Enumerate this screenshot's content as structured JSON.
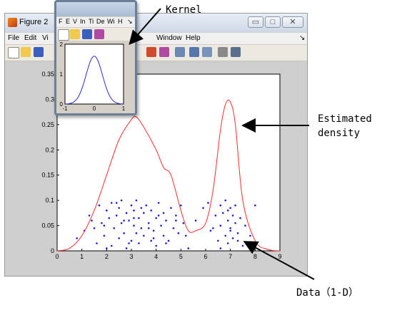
{
  "window": {
    "title": "Figure 2",
    "min_icon": "minimize-icon",
    "max_icon": "maximize-icon",
    "close_icon": "close-icon",
    "min_glyph": "▭",
    "max_glyph": "□",
    "close_glyph": "✕",
    "menu": [
      "File",
      "Edit",
      "Vi",
      "Window",
      "Help"
    ]
  },
  "popup": {
    "menu": [
      "F",
      "E",
      "V",
      "In",
      "Ti",
      "De",
      "Wi",
      "H"
    ],
    "chart_data": {
      "type": "line",
      "x_ticks": [
        "-1",
        "0",
        "1"
      ],
      "y_ticks": [
        "2",
        "1",
        "0"
      ],
      "xlim": [
        -1,
        1
      ],
      "ylim": [
        0,
        2
      ],
      "series": [
        {
          "color": "#2b2bd9",
          "peak_x": 0,
          "peak_y": 1.6
        }
      ]
    }
  },
  "annotations": {
    "kernel": "Kernel",
    "estimated_line1": "Estimated",
    "estimated_line2": "density",
    "data": "Data（1-D）"
  },
  "chart_data": {
    "type": "line",
    "xlim": [
      0,
      9
    ],
    "ylim": [
      0,
      0.35
    ],
    "x_ticks": [
      "0",
      "1",
      "2",
      "3",
      "4",
      "5",
      "6",
      "7",
      "8",
      "9"
    ],
    "y_ticks": [
      "0",
      "0.05",
      "0.1",
      "0.15",
      "0.2",
      "0.25",
      "0.3",
      "0.35"
    ],
    "density_color": "#ff2b2b",
    "points_color": "#1a1ae6",
    "density": {
      "x": [
        0,
        0.5,
        1.0,
        1.5,
        2.0,
        2.5,
        3.0,
        3.2,
        3.5,
        4.0,
        4.3,
        4.6,
        5.0,
        5.3,
        5.6,
        6.0,
        6.3,
        6.6,
        6.8,
        7.0,
        7.2,
        7.5,
        8.0,
        8.5,
        9.0
      ],
      "y": [
        0.0,
        0.005,
        0.03,
        0.08,
        0.15,
        0.22,
        0.26,
        0.265,
        0.245,
        0.2,
        0.165,
        0.15,
        0.08,
        0.04,
        0.04,
        0.055,
        0.12,
        0.24,
        0.29,
        0.295,
        0.25,
        0.1,
        0.02,
        0.003,
        0.0
      ]
    },
    "points": {
      "x": [
        0.8,
        1.1,
        1.3,
        1.5,
        1.6,
        1.7,
        1.8,
        1.9,
        2.0,
        2.1,
        2.2,
        2.2,
        2.3,
        2.4,
        2.5,
        2.5,
        2.6,
        2.7,
        2.8,
        2.8,
        2.9,
        3.0,
        3.0,
        3.1,
        3.1,
        3.2,
        3.2,
        3.3,
        3.3,
        3.4,
        3.5,
        3.5,
        3.6,
        3.7,
        3.8,
        3.8,
        3.9,
        4.0,
        4.0,
        4.1,
        4.2,
        4.3,
        4.3,
        4.4,
        4.5,
        4.6,
        4.7,
        4.8,
        4.9,
        5.0,
        5.1,
        5.3,
        5.6,
        5.9,
        6.1,
        6.2,
        6.4,
        6.5,
        6.6,
        6.6,
        6.7,
        6.8,
        6.8,
        6.9,
        6.9,
        7.0,
        7.0,
        7.1,
        7.1,
        7.2,
        7.2,
        7.3,
        7.4,
        7.5,
        7.6,
        7.8,
        8.0,
        1.4,
        2.0,
        2.6,
        3.4,
        4.1,
        4.8,
        6.6,
        7.3,
        2.9,
        3.7,
        6.9,
        1.9,
        3.1,
        4.4,
        7.0,
        2.4,
        5.2,
        6.3,
        3.9,
        2.7
      ],
      "y": [
        0.025,
        0.04,
        0.07,
        0.045,
        0.015,
        0.09,
        0.055,
        0.03,
        0.08,
        0.065,
        0.01,
        0.095,
        0.045,
        0.07,
        0.025,
        0.085,
        0.055,
        0.035,
        0.075,
        0.005,
        0.06,
        0.09,
        0.02,
        0.05,
        0.08,
        0.035,
        0.1,
        0.065,
        0.015,
        0.045,
        0.075,
        0.03,
        0.09,
        0.055,
        0.02,
        0.08,
        0.04,
        0.065,
        0.01,
        0.095,
        0.05,
        0.03,
        0.075,
        0.06,
        0.02,
        0.085,
        0.045,
        0.07,
        0.035,
        0.09,
        0.055,
        0.005,
        0.06,
        0.085,
        0.095,
        0.04,
        0.07,
        0.02,
        0.09,
        0.05,
        0.075,
        0.03,
        0.1,
        0.06,
        0.015,
        0.085,
        0.045,
        0.07,
        0.025,
        0.055,
        0.09,
        0.035,
        0.065,
        0.01,
        0.05,
        0.03,
        0.09,
        0.06,
        0.005,
        0.1,
        0.085,
        0.07,
        0.06,
        0.005,
        0.02,
        0.015,
        0.045,
        0.08,
        0.05,
        0.065,
        0.015,
        0.04,
        0.095,
        0.03,
        0.045,
        0.025,
        0.06
      ]
    }
  }
}
